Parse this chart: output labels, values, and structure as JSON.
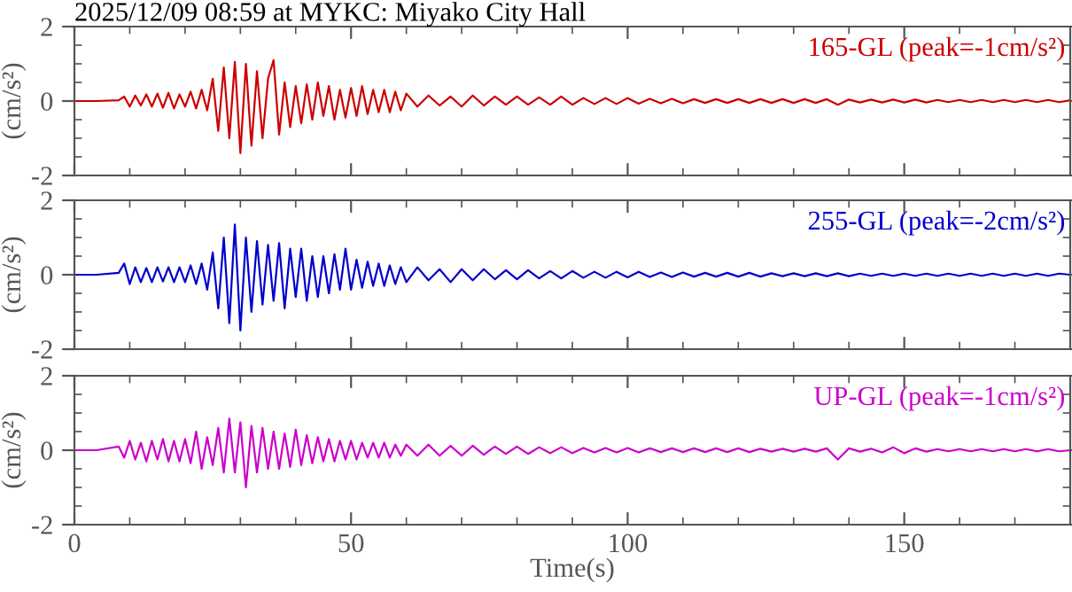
{
  "chart_data": [
    {
      "type": "line",
      "title": "2025/12/09 08:59 at MYKC: Miyako City Hall",
      "ylabel": "(cm/s²)",
      "tick_labels": "y",
      "xlim": [
        0,
        180
      ],
      "xticks": [
        0,
        50,
        100,
        150
      ],
      "ylim": [
        -2,
        2
      ],
      "yticks": [
        -2,
        0,
        2
      ],
      "x": [
        0,
        4,
        8,
        9,
        10,
        11,
        12,
        13,
        14,
        15,
        16,
        17,
        18,
        19,
        20,
        21,
        22,
        23,
        24,
        25,
        26,
        27,
        28,
        29,
        30,
        31,
        32,
        33,
        34,
        35,
        36,
        37,
        38,
        39,
        40,
        41,
        42,
        43,
        44,
        45,
        46,
        47,
        48,
        49,
        50,
        51,
        52,
        53,
        54,
        55,
        56,
        57,
        58,
        59,
        60,
        62,
        64,
        66,
        68,
        70,
        72,
        74,
        76,
        78,
        80,
        82,
        84,
        86,
        88,
        90,
        92,
        94,
        96,
        98,
        100,
        102,
        104,
        106,
        108,
        110,
        112,
        114,
        116,
        118,
        120,
        122,
        124,
        126,
        128,
        130,
        132,
        134,
        136,
        138,
        140,
        142,
        144,
        146,
        148,
        150,
        152,
        154,
        156,
        158,
        160,
        162,
        164,
        166,
        168,
        170,
        172,
        174,
        176,
        178,
        180
      ],
      "series": [
        {
          "name": "165-GL (peak=-1cm/s²)",
          "color": "#cc0000",
          "values": [
            0,
            0,
            0.02,
            0.12,
            -0.15,
            0.15,
            -0.12,
            0.18,
            -0.15,
            0.2,
            -0.18,
            0.22,
            -0.2,
            0.18,
            -0.15,
            0.25,
            -0.2,
            0.3,
            -0.25,
            0.6,
            -0.8,
            0.9,
            -1.0,
            1.05,
            -1.4,
            1.0,
            -1.2,
            0.8,
            -1.0,
            0.6,
            1.1,
            -0.9,
            0.5,
            -0.7,
            0.4,
            -0.6,
            0.45,
            -0.5,
            0.5,
            -0.4,
            0.4,
            -0.5,
            0.3,
            -0.45,
            0.35,
            -0.4,
            0.4,
            -0.35,
            0.3,
            -0.3,
            0.3,
            -0.3,
            0.25,
            -0.25,
            0.2,
            -0.15,
            0.15,
            -0.12,
            0.12,
            -0.15,
            0.15,
            -0.12,
            0.12,
            -0.1,
            0.12,
            -0.1,
            0.1,
            -0.1,
            0.12,
            -0.1,
            0.08,
            -0.08,
            0.08,
            -0.08,
            0.08,
            -0.07,
            0.06,
            -0.06,
            0.06,
            -0.06,
            0.05,
            -0.05,
            0.05,
            -0.05,
            0.05,
            -0.05,
            0.05,
            -0.05,
            0.05,
            -0.05,
            0.05,
            -0.05,
            0.05,
            -0.1,
            0.04,
            -0.04,
            0.04,
            -0.04,
            0.04,
            -0.04,
            0.04,
            -0.04,
            0.03,
            -0.03,
            0.03,
            -0.03,
            0.03,
            -0.03,
            0.03,
            -0.03,
            0.03,
            -0.03,
            0.03,
            -0.03,
            0.02
          ]
        }
      ]
    },
    {
      "type": "line",
      "ylabel": "(cm/s²)",
      "tick_labels": "y",
      "xlim": [
        0,
        180
      ],
      "xticks": [
        0,
        50,
        100,
        150
      ],
      "ylim": [
        -2,
        2
      ],
      "yticks": [
        -2,
        0,
        2
      ],
      "x": [
        0,
        4,
        8,
        9,
        10,
        11,
        12,
        13,
        14,
        15,
        16,
        17,
        18,
        19,
        20,
        21,
        22,
        23,
        24,
        25,
        26,
        27,
        28,
        29,
        30,
        31,
        32,
        33,
        34,
        35,
        36,
        37,
        38,
        39,
        40,
        41,
        42,
        43,
        44,
        45,
        46,
        47,
        48,
        49,
        50,
        51,
        52,
        53,
        54,
        55,
        56,
        57,
        58,
        59,
        60,
        62,
        64,
        66,
        68,
        70,
        72,
        74,
        76,
        78,
        80,
        82,
        84,
        86,
        88,
        90,
        92,
        94,
        96,
        98,
        100,
        102,
        104,
        106,
        108,
        110,
        112,
        114,
        116,
        118,
        120,
        122,
        124,
        126,
        128,
        130,
        132,
        134,
        136,
        138,
        140,
        142,
        144,
        146,
        148,
        150,
        152,
        154,
        156,
        158,
        160,
        162,
        164,
        166,
        168,
        170,
        172,
        174,
        176,
        178,
        180
      ],
      "series": [
        {
          "name": "255-GL (peak=-2cm/s²)",
          "color": "#0000cc",
          "values": [
            0,
            0,
            0.05,
            0.3,
            -0.25,
            0.2,
            -0.2,
            0.18,
            -0.2,
            0.2,
            -0.18,
            0.2,
            -0.2,
            0.2,
            -0.2,
            0.25,
            -0.25,
            0.3,
            -0.4,
            0.6,
            -0.9,
            1.0,
            -1.3,
            1.35,
            -1.5,
            1.0,
            -1.0,
            0.9,
            -0.8,
            0.8,
            -0.7,
            0.85,
            -0.9,
            0.7,
            -0.6,
            0.7,
            -0.7,
            0.5,
            -0.6,
            0.5,
            -0.5,
            0.55,
            -0.4,
            0.7,
            -0.4,
            0.4,
            -0.35,
            0.35,
            -0.3,
            0.3,
            -0.3,
            0.25,
            -0.25,
            0.2,
            -0.2,
            0.2,
            -0.15,
            0.15,
            -0.2,
            0.15,
            -0.15,
            0.15,
            -0.12,
            0.12,
            -0.12,
            0.12,
            -0.1,
            0.1,
            -0.1,
            0.1,
            -0.08,
            0.08,
            -0.08,
            0.08,
            -0.07,
            0.08,
            -0.06,
            0.06,
            -0.06,
            0.06,
            -0.05,
            0.05,
            -0.05,
            0.05,
            -0.05,
            0.05,
            -0.05,
            0.04,
            -0.04,
            0.04,
            -0.04,
            0.04,
            -0.04,
            0.04,
            -0.04,
            0.03,
            -0.03,
            0.03,
            -0.03,
            0.03,
            -0.03,
            0.03,
            -0.03,
            0.03,
            -0.03,
            0.03,
            -0.03,
            0.03,
            -0.03,
            0.03,
            -0.03,
            0.03,
            -0.03,
            0.03,
            0
          ]
        }
      ]
    },
    {
      "type": "line",
      "ylabel": "(cm/s²)",
      "xlabel": "Time(s)",
      "xlim": [
        0,
        180
      ],
      "xticks": [
        0,
        50,
        100,
        150
      ],
      "ylim": [
        -2,
        2
      ],
      "yticks": [
        -2,
        0,
        2
      ],
      "x": [
        0,
        4,
        8,
        9,
        10,
        11,
        12,
        13,
        14,
        15,
        16,
        17,
        18,
        19,
        20,
        21,
        22,
        23,
        24,
        25,
        26,
        27,
        28,
        29,
        30,
        31,
        32,
        33,
        34,
        35,
        36,
        37,
        38,
        39,
        40,
        41,
        42,
        43,
        44,
        45,
        46,
        47,
        48,
        49,
        50,
        51,
        52,
        53,
        54,
        55,
        56,
        57,
        58,
        59,
        60,
        62,
        64,
        66,
        68,
        70,
        72,
        74,
        76,
        78,
        80,
        82,
        84,
        86,
        88,
        90,
        92,
        94,
        96,
        98,
        100,
        102,
        104,
        106,
        108,
        110,
        112,
        114,
        116,
        118,
        120,
        122,
        124,
        126,
        128,
        130,
        132,
        134,
        136,
        138,
        140,
        142,
        144,
        146,
        148,
        150,
        152,
        154,
        156,
        158,
        160,
        162,
        164,
        166,
        168,
        170,
        172,
        174,
        176,
        178,
        180
      ],
      "series": [
        {
          "name": "UP-GL (peak=-1cm/s²)",
          "color": "#cc00cc",
          "values": [
            0,
            0,
            0.1,
            -0.2,
            0.25,
            -0.25,
            0.2,
            -0.3,
            0.25,
            -0.25,
            0.3,
            -0.3,
            0.25,
            -0.3,
            0.3,
            -0.35,
            0.5,
            -0.5,
            0.35,
            -0.4,
            0.6,
            -0.6,
            0.85,
            -0.6,
            0.75,
            -1.0,
            0.65,
            -0.6,
            0.6,
            -0.5,
            0.5,
            -0.5,
            0.45,
            -0.45,
            0.55,
            -0.4,
            0.4,
            -0.35,
            0.35,
            -0.3,
            0.3,
            -0.3,
            0.25,
            -0.25,
            0.25,
            -0.25,
            0.2,
            -0.2,
            0.2,
            -0.2,
            0.2,
            -0.2,
            0.15,
            -0.15,
            0.15,
            -0.15,
            0.15,
            -0.15,
            0.12,
            -0.15,
            0.12,
            -0.12,
            0.1,
            -0.1,
            0.1,
            -0.1,
            0.08,
            -0.08,
            0.08,
            -0.08,
            0.06,
            -0.06,
            0.06,
            -0.06,
            0.06,
            -0.06,
            0.05,
            -0.05,
            0.05,
            -0.05,
            0.05,
            -0.05,
            0.05,
            -0.05,
            0.05,
            -0.05,
            0.04,
            -0.04,
            0.04,
            -0.04,
            0.04,
            -0.04,
            0.05,
            -0.25,
            0.05,
            -0.04,
            0.04,
            -0.06,
            0.08,
            -0.08,
            0.05,
            -0.04,
            0.03,
            -0.03,
            0.03,
            -0.03,
            0.03,
            -0.03,
            0.03,
            -0.03,
            0.03,
            -0.03,
            0.03,
            -0.03,
            0
          ]
        }
      ]
    }
  ]
}
